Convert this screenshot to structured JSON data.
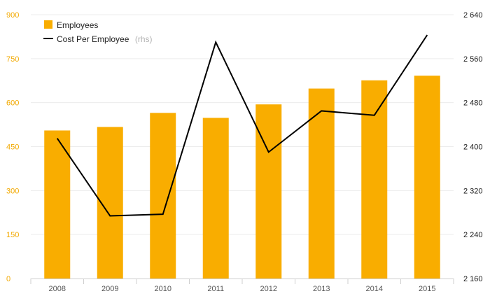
{
  "chart_data": {
    "type": "bar",
    "categories": [
      "2008",
      "2009",
      "2010",
      "2011",
      "2012",
      "2013",
      "2014",
      "2015"
    ],
    "series": [
      {
        "name": "Employees",
        "type": "bar",
        "axis": "left",
        "color": "#f9ad00",
        "values": [
          505,
          517,
          565,
          548,
          594,
          648,
          676,
          692
        ]
      },
      {
        "name": "Cost Per Employee",
        "name_suffix": "(rhs)",
        "type": "line",
        "axis": "right",
        "color": "#000000",
        "values": [
          2415,
          2274,
          2277,
          2590,
          2390,
          2465,
          2457,
          2603
        ]
      }
    ],
    "y_left": {
      "min": 0,
      "max": 900,
      "ticks": [
        0,
        150,
        300,
        450,
        600,
        750,
        900
      ],
      "tick_labels": [
        "0",
        "150",
        "300",
        "450",
        "600",
        "750",
        "900"
      ],
      "color": "#f2a900"
    },
    "y_right": {
      "min": 2160,
      "max": 2640,
      "ticks": [
        2160,
        2240,
        2320,
        2400,
        2480,
        2560,
        2640
      ],
      "tick_labels": [
        "2 160",
        "2 240",
        "2 320",
        "2 400",
        "2 480",
        "2 560",
        "2 640"
      ],
      "color": "#1a1a1a"
    },
    "grid": true,
    "legend_position": "top-left"
  }
}
